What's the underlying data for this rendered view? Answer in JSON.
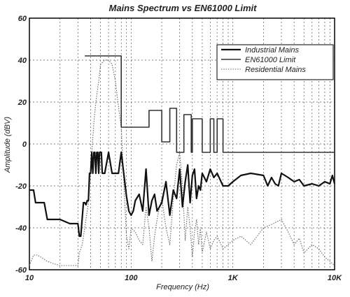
{
  "chart_data": {
    "type": "line",
    "title": "Mains Spectrum vs EN61000 Limit",
    "xlabel": "Frequency (Hz)",
    "ylabel": "Amplitude (dBV)",
    "xscale": "log",
    "xlim": [
      10,
      10000
    ],
    "ylim": [
      -60,
      60
    ],
    "x_ticks": [
      10,
      100,
      1000,
      10000
    ],
    "x_tick_labels": [
      "10",
      "100",
      "1K",
      "10K"
    ],
    "y_ticks": [
      -60,
      -40,
      -20,
      0,
      20,
      40,
      60
    ],
    "y_tick_labels": [
      "-60",
      "-40",
      "-20",
      "0",
      "20",
      "40",
      "60"
    ],
    "grid": true,
    "legend_position": "top-right",
    "series": [
      {
        "name": "Industrial Mains",
        "color": "#111111",
        "style": "solid-thick",
        "x": [
          10,
          11,
          11.5,
          14,
          15,
          20,
          25,
          30,
          31,
          32,
          34,
          35,
          36,
          37,
          38,
          39,
          40,
          41,
          42,
          43,
          44,
          45,
          46,
          47,
          48,
          49,
          50,
          51,
          52,
          55,
          60,
          65,
          70,
          75,
          80,
          90,
          95,
          100,
          105,
          110,
          120,
          130,
          140,
          150,
          160,
          170,
          180,
          190,
          200,
          220,
          240,
          260,
          280,
          300,
          320,
          340,
          360,
          380,
          400,
          420,
          440,
          460,
          480,
          500,
          550,
          600,
          650,
          700,
          800,
          900,
          1000,
          1200,
          1500,
          2000,
          2200,
          2400,
          2600,
          2800,
          3000,
          3500,
          4000,
          4500,
          5000,
          6000,
          7000,
          8000,
          9000,
          9500,
          10000
        ],
        "y": [
          -22,
          -22,
          -28,
          -28,
          -36,
          -36,
          -38,
          -38,
          -44,
          -44,
          -28,
          -28,
          -29,
          -27,
          -27,
          -14,
          -14,
          -4,
          -14,
          -4,
          -4,
          -14,
          -4,
          -4,
          -14,
          -4,
          -4,
          -4,
          -14,
          -14,
          -4,
          -14,
          -14,
          -14,
          -4,
          -25,
          -32,
          -34,
          -32,
          -27,
          -24,
          -32,
          -12,
          -34,
          -27,
          -24,
          -32,
          -30,
          -28,
          -18,
          -34,
          -22,
          -26,
          -12,
          -30,
          -18,
          -10,
          -28,
          -15,
          -12,
          -26,
          -20,
          -22,
          -14,
          -18,
          -12,
          -16,
          -14,
          -20,
          -20,
          -18,
          -15,
          -14,
          -15,
          -20,
          -16,
          -19,
          -20,
          -14,
          -16,
          -18,
          -17,
          -20,
          -19,
          -20,
          -18,
          -19,
          -15,
          -19
        ]
      },
      {
        "name": "EN61000 Limit",
        "color": "#333333",
        "style": "solid",
        "x": [
          35,
          60,
          60,
          65,
          65,
          70,
          70,
          75,
          75,
          80,
          80,
          90,
          90,
          100,
          100,
          105,
          105,
          115,
          115,
          120,
          120,
          150,
          150,
          200,
          200,
          240,
          240,
          280,
          280,
          330,
          330,
          390,
          390,
          400,
          400,
          500,
          500,
          600,
          600,
          650,
          650,
          700,
          700,
          800,
          800,
          10000
        ],
        "y": [
          42,
          42,
          42,
          42,
          42,
          42,
          42,
          42,
          42,
          42,
          8,
          8,
          8,
          8,
          8,
          8,
          8,
          8,
          8,
          8,
          8,
          8,
          16,
          16,
          1,
          1,
          17,
          17,
          -4,
          -4,
          14,
          14,
          -4,
          -4,
          12,
          12,
          -4,
          -4,
          12,
          12,
          -4,
          -4,
          12,
          12,
          -4,
          -4
        ]
      },
      {
        "name": "Residential Mains",
        "color": "#666666",
        "style": "dotted",
        "x": [
          10,
          11,
          12,
          14,
          15,
          17,
          20,
          25,
          28,
          30,
          31,
          33,
          35,
          38,
          40,
          43,
          45,
          48,
          50,
          55,
          60,
          65,
          70,
          75,
          80,
          85,
          90,
          95,
          100,
          110,
          120,
          130,
          140,
          150,
          160,
          170,
          180,
          190,
          200,
          220,
          240,
          260,
          280,
          300,
          320,
          340,
          360,
          380,
          400,
          420,
          440,
          460,
          480,
          500,
          550,
          600,
          650,
          700,
          800,
          900,
          1000,
          1200,
          1500,
          2000,
          2500,
          3000,
          3500,
          4000,
          4500,
          5000,
          6000,
          7000,
          8000,
          9000,
          10000
        ],
        "y": [
          -58,
          -53,
          -53,
          -55,
          -56,
          -57,
          -58,
          -58,
          -58,
          -58,
          -52,
          -48,
          -40,
          -28,
          -12,
          10,
          20,
          30,
          38,
          40,
          40,
          38,
          30,
          18,
          8,
          -20,
          -44,
          -50,
          -40,
          -42,
          -46,
          -48,
          -30,
          -40,
          -56,
          -44,
          -36,
          -30,
          -26,
          -40,
          -48,
          -26,
          -10,
          -4,
          -20,
          -46,
          -30,
          -40,
          -54,
          -42,
          -36,
          -48,
          -40,
          -52,
          -42,
          -50,
          -46,
          -44,
          -50,
          -48,
          -46,
          -44,
          -48,
          -40,
          -38,
          -36,
          -42,
          -48,
          -45,
          -52,
          -48,
          -50,
          -54,
          -56,
          -58
        ]
      }
    ]
  }
}
